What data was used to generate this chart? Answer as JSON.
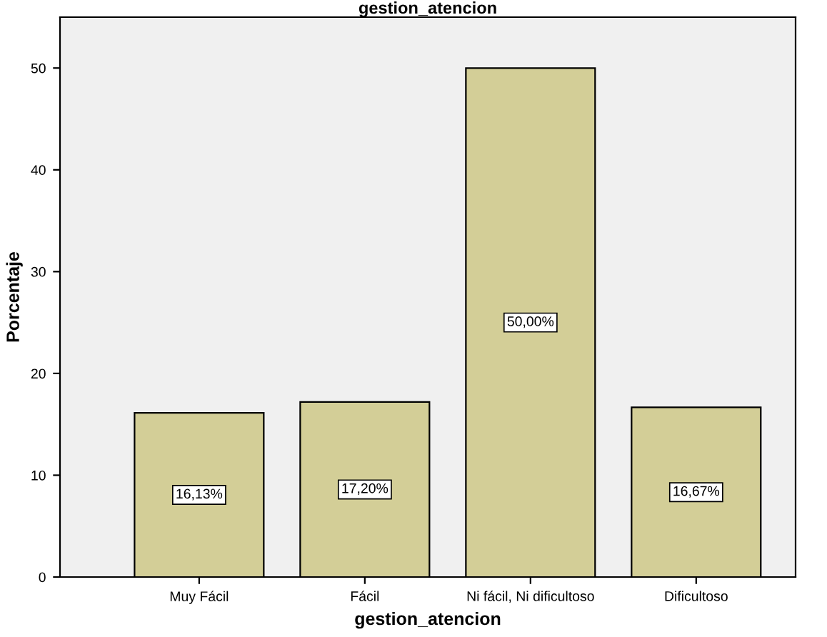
{
  "chart_data": {
    "type": "bar",
    "title": "gestion_atencion",
    "xlabel": "gestion_atencion",
    "ylabel": "Porcentaje",
    "categories": [
      "Muy Fácil",
      "Fácil",
      "Ni fácil, Ni dificultoso",
      "Dificultoso"
    ],
    "values": [
      16.13,
      17.2,
      50.0,
      16.67
    ],
    "value_labels": [
      "16,13%",
      "17,20%",
      "50,00%",
      "16,67%"
    ],
    "color": "#d3ce97",
    "ylim": [
      0,
      55
    ],
    "yticks": [
      0,
      10,
      20,
      30,
      40,
      50
    ],
    "grid": false,
    "legend": false
  }
}
